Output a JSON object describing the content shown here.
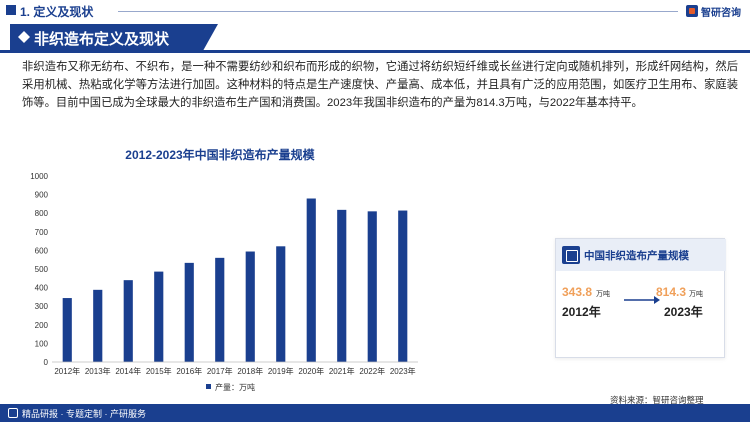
{
  "header": {
    "section_title": "1. 定义及现状",
    "logo_text": "智研咨询",
    "icon": "square-icon"
  },
  "banner": {
    "title": "非织造布定义及现状",
    "icon": "diamond-icon"
  },
  "paragraph": "非织造布又称无纺布、不织布，是一种不需要纺纱和织布而形成的织物，它通过将纺织短纤维或长丝进行定向或随机排列，形成纤网结构，然后采用机械、热粘或化学等方法进行加固。这种材料的特点是生产速度快、产量高、成本低，并且具有广泛的应用范围，如医疗卫生用布、家庭装饰等。目前中国已成为全球最大的非织造布生产国和消费国。2023年我国非织造布的产量为814.3万吨，与2022年基本持平。",
  "chart_data": {
    "type": "bar",
    "title": "2012-2023年中国非织造布产量规模",
    "categories": [
      "2012年",
      "2013年",
      "2014年",
      "2015年",
      "2016年",
      "2017年",
      "2018年",
      "2019年",
      "2020年",
      "2021年",
      "2022年",
      "2023年"
    ],
    "series": [
      {
        "name": "产量：万吨",
        "values": [
          343.8,
          388,
          440,
          486,
          533,
          560,
          594,
          622,
          879,
          818,
          810,
          814.3
        ]
      }
    ],
    "ylim": [
      0,
      1000
    ],
    "yticks": [
      0,
      100,
      200,
      300,
      400,
      500,
      600,
      700,
      800,
      900,
      1000
    ],
    "xlabel": "",
    "ylabel": "",
    "grid": false,
    "legend_position": "bottom",
    "bar_color": "#1a3f8f"
  },
  "card": {
    "title": "中国非织造布产量规模",
    "start_value": "343.8",
    "start_unit": "万吨",
    "start_year": "2012年",
    "end_value": "814.3",
    "end_unit": "万吨",
    "end_year": "2023年",
    "icon": "document-icon"
  },
  "source": "资料来源：智研咨询整理",
  "footer": {
    "text": "精品研报 · 专题定制 · 产研服务",
    "icon": "box-icon"
  },
  "colors": {
    "brand": "#1a3f8f",
    "accent": "#f0a05a"
  }
}
